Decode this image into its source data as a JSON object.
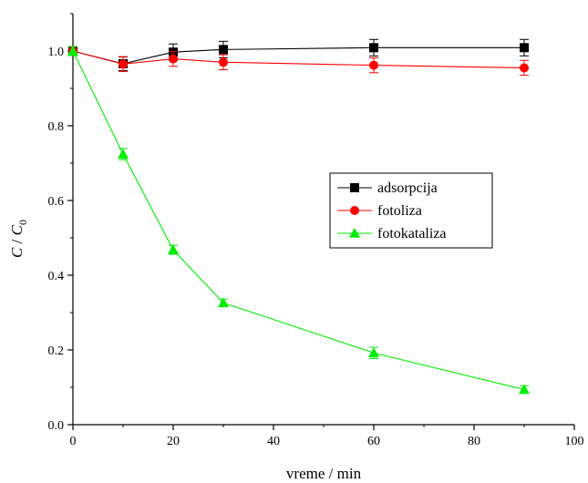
{
  "chart_data": {
    "type": "line",
    "xlabel": "vreme / min",
    "ylabel": "C / C0",
    "ylabel_main": "C",
    "ylabel_sep": " / ",
    "ylabel_sub_base": "C",
    "ylabel_sub_index": "0",
    "xlim": [
      0,
      100
    ],
    "ylim": [
      0.0,
      1.1
    ],
    "x_ticks": [
      "0",
      "20",
      "40",
      "60",
      "80",
      "100"
    ],
    "y_ticks": [
      "0.0",
      "0.2",
      "0.4",
      "0.6",
      "0.8",
      "1.0"
    ],
    "grid": false,
    "legend_position": "center-right",
    "series": [
      {
        "name": "adsorpcija",
        "color": "#000000",
        "marker": "square",
        "x": [
          0,
          10,
          20,
          30,
          60,
          90
        ],
        "y": [
          1.0,
          0.966,
          0.997,
          1.004,
          1.009,
          1.009
        ],
        "err": [
          0.012,
          0.018,
          0.022,
          0.022,
          0.022,
          0.022
        ]
      },
      {
        "name": "fotoliza",
        "color": "#ff0000",
        "marker": "circle",
        "x": [
          0,
          10,
          20,
          30,
          60,
          90
        ],
        "y": [
          1.0,
          0.965,
          0.979,
          0.97,
          0.962,
          0.955
        ],
        "err": [
          0.012,
          0.02,
          0.02,
          0.02,
          0.02,
          0.02
        ]
      },
      {
        "name": "fotokataliza",
        "color": "#00ee00",
        "marker": "triangle",
        "x": [
          0,
          10,
          20,
          30,
          60,
          90
        ],
        "y": [
          1.0,
          0.724,
          0.468,
          0.326,
          0.192,
          0.094
        ],
        "err": [
          0.012,
          0.015,
          0.012,
          0.01,
          0.015,
          0.01
        ]
      }
    ]
  }
}
